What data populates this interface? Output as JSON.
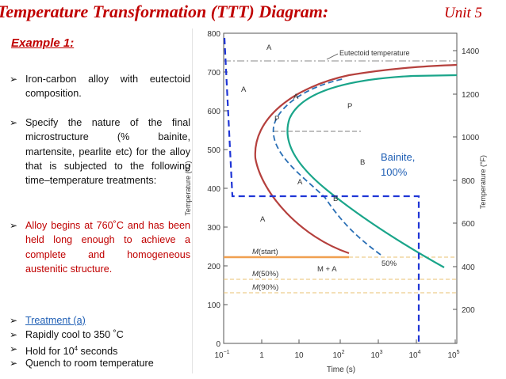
{
  "header": {
    "title": "Temperature Transformation (TTT) Diagram:",
    "unit": "Unit 5"
  },
  "left": {
    "example": "Example 1:",
    "b1": "Iron-carbon alloy with eutectoid composition.",
    "b2": "Specify the nature of the final microstructure (% bainite, martensite, pearlite etc) for the alloy that is subjected to the following time–temperature treatments:",
    "b3": "Alloy begins at 760˚C and has been held long enough to achieve a complete and homogeneous austenitic structure.",
    "b4": "Treatment (a)",
    "b5": "Rapidly cool to 350 ˚C",
    "b6_pre": "Hold for 10",
    "b6_sup": "4",
    "b6_post": " seconds",
    "b7": "Quench to room temperature"
  },
  "chart": {
    "ylabel_left": "Temperature (°C)",
    "ylabel_right": "Temperature (°F)",
    "xlabel": "Time (s)",
    "yticks_c": [
      "0",
      "100",
      "200",
      "300",
      "400",
      "500",
      "600",
      "700",
      "800"
    ],
    "yticks_f": [
      "200",
      "400",
      "600",
      "800",
      "1000",
      "1200",
      "1400"
    ],
    "xticks": [
      {
        "base": "10",
        "exp": "−1"
      },
      {
        "base": "1",
        "exp": ""
      },
      {
        "base": "10",
        "exp": ""
      },
      {
        "base": "10",
        "exp": "2"
      },
      {
        "base": "10",
        "exp": "3"
      },
      {
        "base": "10",
        "exp": "4"
      },
      {
        "base": "10",
        "exp": "5"
      }
    ],
    "eutectoid_label": "Eutectoid temperature",
    "regions": {
      "a_top": "A",
      "a_left": "A",
      "a_pa": "A",
      "p_small": "P",
      "p_right": "P",
      "b_right": "B",
      "a_ab": "A",
      "b_small": "B",
      "a_low": "A",
      "ma": "M + A",
      "pct50": "50%"
    },
    "mstart_m": "M",
    "mstart_rest": "(start)",
    "m50_m": "M",
    "m50_rest": "(50%)",
    "m90_m": "M",
    "m90_rest": "(90%)",
    "annotation_line1": "Bainite,",
    "annotation_line2": "100%",
    "colors": {
      "start_curve": "#b5403d",
      "finish_curve": "#1aa58a",
      "mid_curve": "#2a6fb5",
      "path": "#1f35d6",
      "mstart": "#f0a050"
    }
  }
}
